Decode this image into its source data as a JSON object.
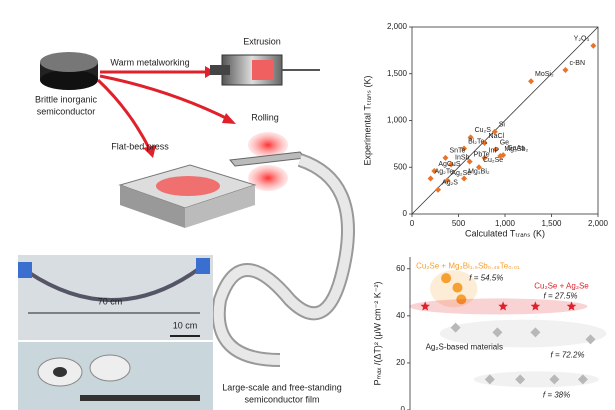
{
  "schematic": {
    "brittle_label": [
      "Brittle inorganic",
      "semiconductor"
    ],
    "warm_label": "Warm metalworking",
    "extrusion_label": "Extrusion",
    "press_label": "Flat-bed press",
    "rolling_label": "Rolling",
    "length_label": "70 cm",
    "scale_label": "10 cm",
    "film_label": [
      "Large-scale and free-standing",
      "semiconductor film"
    ]
  },
  "chart_data": [
    {
      "type": "scatter",
      "xlabel": "Calculated Tₜᵣₐₙₛ (K)",
      "ylabel": "Experimental Tₜᵣₐₙₛ (K)",
      "xlim": [
        0,
        2000
      ],
      "ylim": [
        0,
        2000
      ],
      "xticks": [
        0,
        500,
        {
          "value": 1000,
          "label": "1,000"
        },
        {
          "value": 1500,
          "label": "1,500"
        },
        {
          "value": 2000,
          "label": "2,000"
        }
      ],
      "yticks": [
        0,
        500,
        {
          "value": 1000,
          "label": "1,000"
        },
        {
          "value": 1500,
          "label": "1,500"
        },
        {
          "value": 2000,
          "label": "2,000"
        }
      ],
      "diagonal": true,
      "color": "#e8742a",
      "groups": [
        {
          "marker": "diamond",
          "color": "#e8742a",
          "point_labels": [
            "Y₂O₃",
            "MoSi₂",
            "c-BN",
            "Si",
            "Cu₂S",
            "NaCl",
            "Ge",
            "GaAs",
            "Bi₂Te₃",
            "SnTe",
            "InSb",
            "InP",
            "PbTe",
            "Cu₂Se",
            "Mg₃Sb₂",
            "AgCuS",
            "Ag₂Te",
            "Ag₂Se",
            "Mg₃Bi₂",
            "Ag₂S"
          ],
          "x": [
            1950,
            1280,
            1650,
            890,
            630,
            780,
            900,
            980,
            560,
            360,
            420,
            780,
            620,
            720,
            950,
            240,
            200,
            380,
            560,
            280
          ],
          "values": [
            1800,
            1420,
            1540,
            880,
            820,
            760,
            690,
            630,
            700,
            600,
            530,
            600,
            560,
            500,
            620,
            460,
            380,
            360,
            380,
            260
          ]
        }
      ]
    },
    {
      "type": "scatter",
      "ylabel": "Pₘₐₓ /(ΔT)² (μW cm⁻² K⁻²)",
      "xlim": [
        0,
        10
      ],
      "ylim": [
        0,
        65
      ],
      "yticks": [
        0,
        20,
        40,
        60
      ],
      "groups": [
        {
          "marker": "circle",
          "color": "#f5a030",
          "label": "Cu₂Se + Mg₃Bi₁.₅Sb₀.₄₉Te₀.₀₁",
          "f_label": "f = 54.5%",
          "x": [
            1.9,
            2.5,
            2.7
          ],
          "values": [
            56,
            52,
            47
          ]
        },
        {
          "marker": "star",
          "color": "#e0202a",
          "label": "Cu₂Se + Ag₂Se",
          "f_label": "f = 27.5%",
          "x": [
            0.8,
            4.9,
            6.6,
            8.5
          ],
          "values": [
            44,
            44,
            44,
            44
          ]
        },
        {
          "marker": "diamond",
          "color": "#b8b8b8",
          "label": "Ag₂S-based materials",
          "f_label": "f = 72.2%",
          "x": [
            2.4,
            4.6,
            6.6,
            9.5
          ],
          "values": [
            35,
            33,
            33,
            30
          ]
        },
        {
          "marker": "diamond",
          "color": "#b8b8b8",
          "f_label": "f = 38%",
          "x": [
            4.2,
            5.8,
            7.6,
            9.1
          ],
          "values": [
            13,
            13,
            13,
            13
          ]
        }
      ]
    }
  ]
}
